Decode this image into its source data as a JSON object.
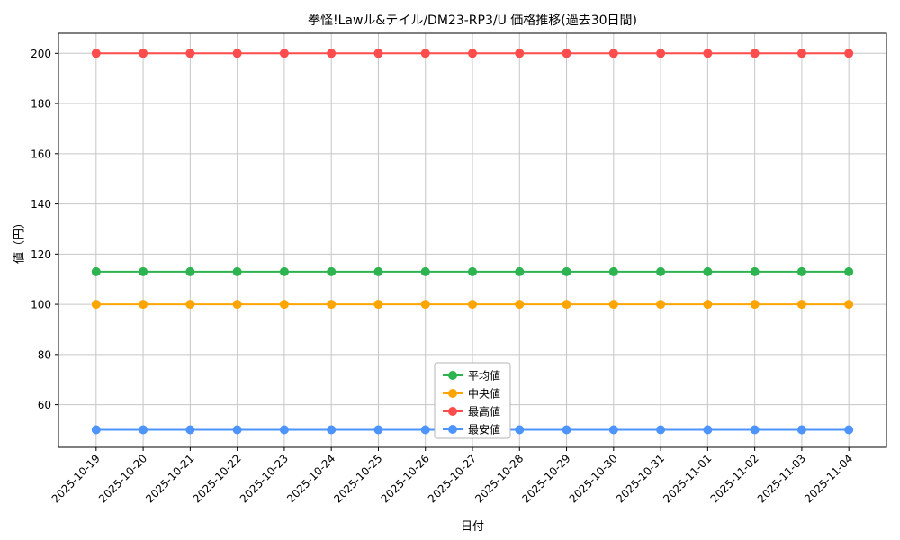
{
  "chart_data": {
    "type": "line",
    "title": "拳怪!Lawル&テイル/DM23-RP3/U 価格推移(過去30日間)",
    "xlabel": "日付",
    "ylabel": "値（円）",
    "x": [
      "2025-10-19",
      "2025-10-20",
      "2025-10-21",
      "2025-10-22",
      "2025-10-23",
      "2025-10-24",
      "2025-10-25",
      "2025-10-26",
      "2025-10-27",
      "2025-10-28",
      "2025-10-29",
      "2025-10-30",
      "2025-10-31",
      "2025-11-01",
      "2025-11-02",
      "2025-11-03",
      "2025-11-04"
    ],
    "yticks": [
      60,
      80,
      100,
      120,
      140,
      160,
      180,
      200
    ],
    "ylim": [
      43,
      208
    ],
    "grid": true,
    "grid_color": "#c6c6c6",
    "legend_position": "lower center",
    "series": [
      {
        "name": "平均値",
        "slug": "average",
        "color": "#2db34f",
        "values": [
          113,
          113,
          113,
          113,
          113,
          113,
          113,
          113,
          113,
          113,
          113,
          113,
          113,
          113,
          113,
          113,
          113
        ]
      },
      {
        "name": "中央値",
        "slug": "median",
        "color": "#ffa502",
        "values": [
          100,
          100,
          100,
          100,
          100,
          100,
          100,
          100,
          100,
          100,
          100,
          100,
          100,
          100,
          100,
          100,
          100
        ]
      },
      {
        "name": "最高値",
        "slug": "max",
        "color": "#ff4d4d",
        "values": [
          200,
          200,
          200,
          200,
          200,
          200,
          200,
          200,
          200,
          200,
          200,
          200,
          200,
          200,
          200,
          200,
          200
        ]
      },
      {
        "name": "最安値",
        "slug": "min",
        "color": "#4d94ff",
        "values": [
          50,
          50,
          50,
          50,
          50,
          50,
          50,
          50,
          50,
          50,
          50,
          50,
          50,
          50,
          50,
          50,
          50
        ]
      }
    ]
  }
}
